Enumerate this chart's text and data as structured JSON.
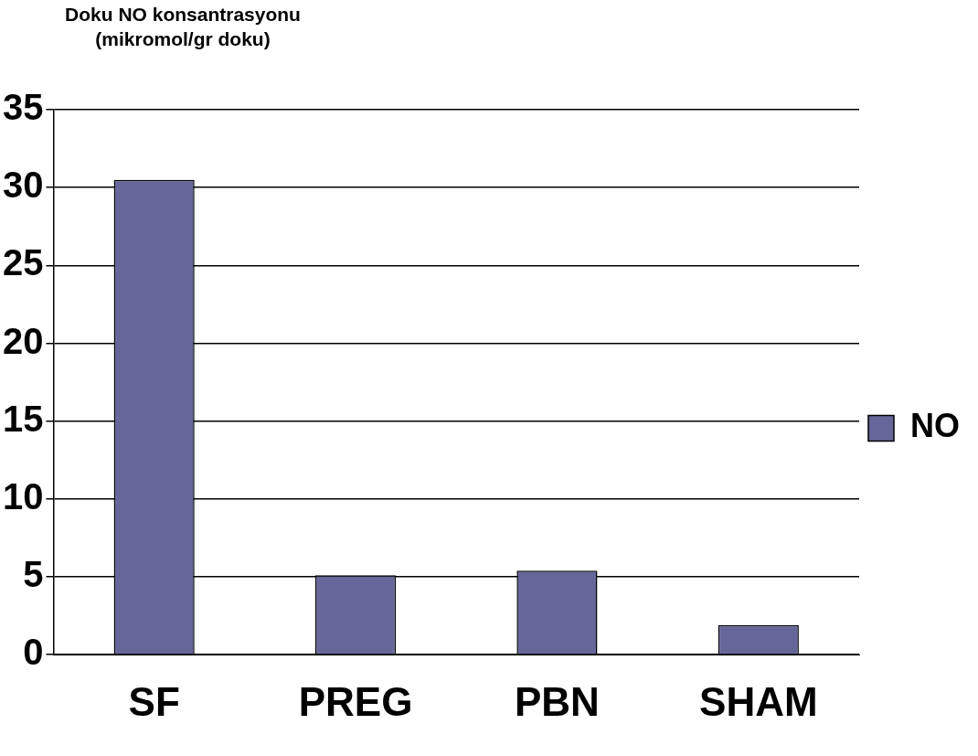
{
  "chart_data": {
    "type": "bar",
    "ylabel": "Doku NO konsantrasyonu (mikromol/gr doku)",
    "categories": [
      "SF",
      "PREG",
      "PBN",
      "SHAM"
    ],
    "series": [
      {
        "name": "NO",
        "color": "#666699",
        "values": [
          30.5,
          5.1,
          5.4,
          1.9
        ]
      }
    ],
    "ylim": [
      0,
      35
    ],
    "yticks": [
      0,
      5,
      10,
      15,
      20,
      25,
      30,
      35
    ],
    "grid": "y",
    "legend": "right"
  }
}
